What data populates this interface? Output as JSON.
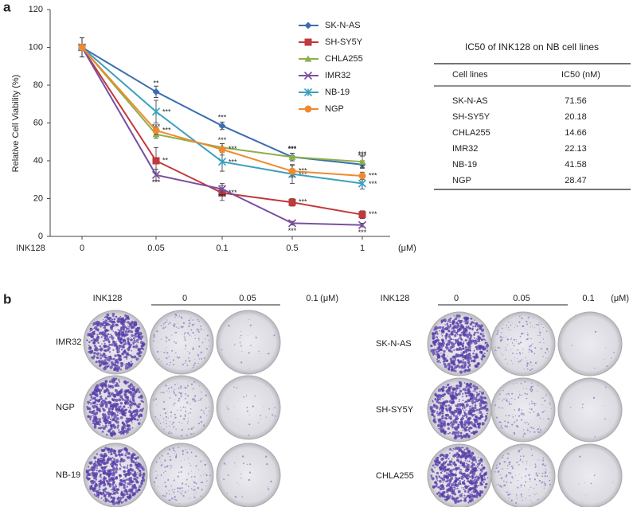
{
  "chart_data": {
    "type": "line",
    "panel_label": "a",
    "y_label": "Relative Cell Viability (%)",
    "x_label": "INK128",
    "x_unit": "(μM)",
    "categories": [
      "0",
      "0.05",
      "0.1",
      "0.5",
      "1"
    ],
    "ylim": [
      0,
      120
    ],
    "yticks": [
      0,
      20,
      40,
      60,
      80,
      100,
      120
    ],
    "grid": false,
    "series": [
      {
        "name": "SK-N-AS",
        "color": "#3b6db0",
        "marker": "diamond",
        "values": [
          100,
          76.5,
          58.5,
          42,
          38
        ],
        "errors": [
          5,
          3,
          2,
          2,
          2
        ],
        "significance": [
          null,
          "**",
          "***",
          "***",
          "***"
        ]
      },
      {
        "name": "SH-SY5Y",
        "color": "#c0393b",
        "marker": "square",
        "values": [
          100,
          40,
          23,
          18,
          11.5
        ],
        "errors": [
          5,
          7,
          4,
          2,
          2
        ],
        "significance": [
          null,
          "**",
          "***",
          "***",
          "***"
        ]
      },
      {
        "name": "CHLA255",
        "color": "#8db04a",
        "marker": "triangle",
        "values": [
          100,
          54,
          47,
          42,
          39.5
        ],
        "errors": [
          5,
          2,
          2,
          2,
          3
        ],
        "significance": [
          null,
          "***",
          "***",
          "***",
          "***"
        ]
      },
      {
        "name": "IMR32",
        "color": "#7a4fa0",
        "marker": "x",
        "values": [
          100,
          32.5,
          25,
          7,
          6
        ],
        "errors": [
          5,
          3,
          3,
          1,
          1
        ],
        "significance": [
          null,
          "***",
          "***",
          "***",
          "***"
        ]
      },
      {
        "name": "NB-19",
        "color": "#3aa0c0",
        "marker": "star",
        "values": [
          100,
          66,
          39.5,
          33,
          28
        ],
        "errors": [
          5,
          6,
          5,
          5,
          3
        ],
        "significance": [
          null,
          "***",
          "***",
          "***",
          "***"
        ]
      },
      {
        "name": "NGP",
        "color": "#f08a30",
        "marker": "circle",
        "values": [
          100,
          56,
          46,
          34.5,
          32
        ],
        "errors": [
          5,
          2,
          3,
          3,
          2
        ],
        "significance": [
          null,
          "***",
          "***",
          "***",
          "***"
        ]
      }
    ]
  },
  "table": {
    "title": "IC50 of INK128 on NB cell lines",
    "headers": [
      "Cell lines",
      "IC50 (nM)"
    ],
    "rows": [
      [
        "SK-N-AS",
        "71.56"
      ],
      [
        "SH-SY5Y",
        "20.18"
      ],
      [
        "CHLA255",
        "14.66"
      ],
      [
        "IMR32",
        "22.13"
      ],
      [
        "NB-19",
        "41.58"
      ],
      [
        "NGP",
        "28.47"
      ]
    ]
  },
  "colony_assay": {
    "panel_label": "b",
    "panels": [
      {
        "treatment_label": "INK128",
        "doses": [
          "0",
          "0.05",
          "0.1"
        ],
        "unit": "(μM)",
        "cell_lines": [
          "IMR32",
          "NGP",
          "NB-19"
        ]
      },
      {
        "treatment_label": "INK128",
        "doses": [
          "0",
          "0.05",
          "0.1"
        ],
        "unit": "(μM)",
        "cell_lines": [
          "SK-N-AS",
          "SH-SY5Y",
          "CHLA255"
        ]
      }
    ]
  }
}
